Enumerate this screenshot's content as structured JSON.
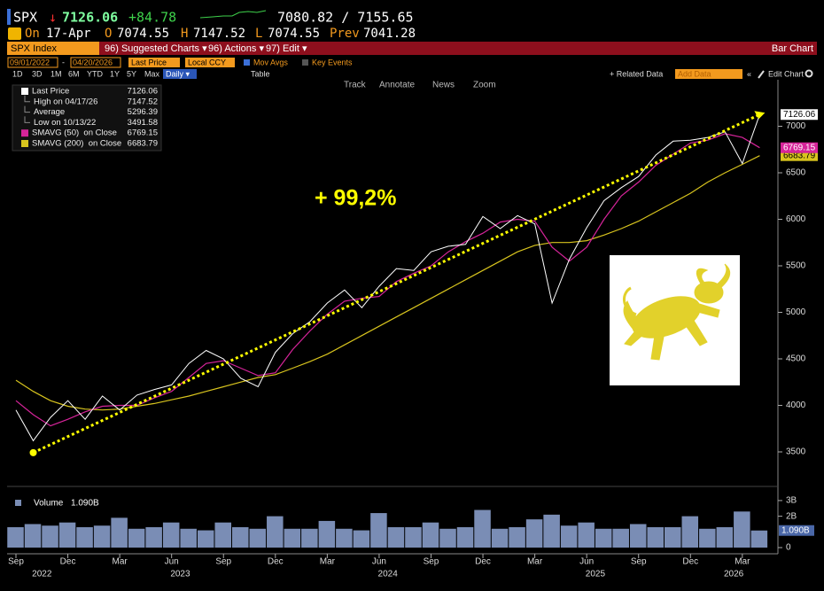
{
  "header": {
    "ticker": "SPX",
    "arrow": "↓",
    "last": "7126.06",
    "change": "+84.78",
    "bid_ask": "7080.82 / 7155.65",
    "quote_row": [
      "On",
      "17-Apr",
      "O",
      "7074.55",
      "H",
      "7147.52",
      "L",
      "7074.55",
      "Prev",
      "7041.28"
    ],
    "security": "SPX Index",
    "menus": [
      "96) Suggested Charts ▾",
      "96) Actions ▾",
      "97) Edit ▾"
    ],
    "view": "Bar Chart",
    "start_date": "09/01/2022",
    "date_sep": "-",
    "end_date": "04/20/2026",
    "field": "Last Price",
    "currency": "Local CCY",
    "options": [
      "Mov Avgs",
      "Key Events"
    ],
    "periods": [
      "1D",
      "3D",
      "1M",
      "6M",
      "YTD",
      "1Y",
      "5Y",
      "Max"
    ],
    "frequency": "Daily ▾",
    "table": "Table",
    "related": "+ Related Data",
    "add_data": "Add Data",
    "collapse": "«",
    "edit_chart": "Edit Chart",
    "chart_tools": [
      "Track",
      "Annotate",
      "News",
      "Zoom"
    ]
  },
  "chart_data": {
    "type": "line",
    "x": [
      "2022-09",
      "2022-10",
      "2022-11",
      "2022-12",
      "2023-01",
      "2023-02",
      "2023-03",
      "2023-04",
      "2023-05",
      "2023-06",
      "2023-07",
      "2023-08",
      "2023-09",
      "2023-10",
      "2023-11",
      "2023-12",
      "2024-01",
      "2024-02",
      "2024-03",
      "2024-04",
      "2024-05",
      "2024-06",
      "2024-07",
      "2024-08",
      "2024-09",
      "2024-10",
      "2024-11",
      "2024-12",
      "2025-01",
      "2025-02",
      "2025-03",
      "2025-04",
      "2025-05",
      "2025-06",
      "2025-07",
      "2025-08",
      "2025-09",
      "2025-10",
      "2025-11",
      "2025-12",
      "2026-01",
      "2026-02",
      "2026-03",
      "2026-04"
    ],
    "series": [
      {
        "name": "Last Price",
        "color": "#ffffff",
        "values": [
          3950,
          3620,
          3870,
          4050,
          3850,
          4100,
          3950,
          4110,
          4170,
          4220,
          4450,
          4590,
          4500,
          4290,
          4200,
          4570,
          4770,
          4900,
          5100,
          5240,
          5050,
          5280,
          5470,
          5450,
          5650,
          5710,
          5730,
          6030,
          5900,
          6040,
          5950,
          5100,
          5570,
          5910,
          6200,
          6340,
          6460,
          6690,
          6840,
          6850,
          6880,
          6940,
          6600,
          7126.06
        ]
      },
      {
        "name": "SMAVG (50)  on Close",
        "color": "#d6249a",
        "values": [
          4050,
          3900,
          3780,
          3850,
          3930,
          3990,
          4000,
          4000,
          4080,
          4150,
          4300,
          4450,
          4480,
          4400,
          4320,
          4350,
          4600,
          4800,
          4980,
          5120,
          5150,
          5170,
          5330,
          5420,
          5500,
          5650,
          5760,
          5850,
          5970,
          6000,
          5980,
          5700,
          5550,
          5700,
          6000,
          6250,
          6400,
          6580,
          6700,
          6820,
          6850,
          6920,
          6880,
          6769.15
        ]
      },
      {
        "name": "SMAVG (200)  on Close",
        "color": "#d8c41e",
        "values": [
          4270,
          4150,
          4050,
          3990,
          3960,
          3950,
          3960,
          3990,
          4020,
          4060,
          4100,
          4150,
          4200,
          4250,
          4300,
          4330,
          4400,
          4470,
          4550,
          4650,
          4750,
          4850,
          4950,
          5050,
          5150,
          5250,
          5350,
          5450,
          5550,
          5650,
          5720,
          5750,
          5750,
          5770,
          5830,
          5900,
          5980,
          6080,
          6180,
          6280,
          6400,
          6500,
          6590,
          6683.79
        ]
      }
    ],
    "stats": [
      {
        "label": "High on 04/17/26",
        "value": 7147.52
      },
      {
        "label": "Average",
        "value": 5296.39
      },
      {
        "label": "Low on 10/13/22",
        "value": 3491.58
      }
    ],
    "ylim": [
      3138,
      7500
    ],
    "yticks": [
      3500,
      4000,
      4500,
      5000,
      5500,
      6000,
      6500,
      7000
    ],
    "grid": false,
    "xticks": [
      {
        "value": "2022-09",
        "label": "Sep"
      },
      {
        "value": "2022-12",
        "label": "Dec"
      },
      {
        "value": "2023-03",
        "label": "Mar"
      },
      {
        "value": "2023-06",
        "label": "Jun"
      },
      {
        "value": "2023-09",
        "label": "Sep"
      },
      {
        "value": "2023-12",
        "label": "Dec"
      },
      {
        "value": "2024-03",
        "label": "Mar"
      },
      {
        "value": "2024-06",
        "label": "Jun"
      },
      {
        "value": "2024-09",
        "label": "Sep"
      },
      {
        "value": "2024-12",
        "label": "Dec"
      },
      {
        "value": "2025-03",
        "label": "Mar"
      },
      {
        "value": "2025-06",
        "label": "Jun"
      },
      {
        "value": "2025-09",
        "label": "Sep"
      },
      {
        "value": "2025-12",
        "label": "Dec"
      },
      {
        "value": "2026-03",
        "label": "Mar"
      }
    ],
    "years": [
      2022,
      2023,
      2024,
      2025,
      2026
    ],
    "annotation": {
      "text": "+ 99,2%",
      "color": "#ffff00"
    },
    "volume": {
      "name": "Volume",
      "color": "#7a8db5",
      "values": [
        1.3,
        1.5,
        1.4,
        1.6,
        1.3,
        1.4,
        1.9,
        1.2,
        1.3,
        1.6,
        1.2,
        1.1,
        1.6,
        1.3,
        1.2,
        2.0,
        1.2,
        1.2,
        1.7,
        1.2,
        1.1,
        2.2,
        1.3,
        1.3,
        1.6,
        1.2,
        1.3,
        2.4,
        1.2,
        1.3,
        1.8,
        2.1,
        1.4,
        1.6,
        1.2,
        1.2,
        1.5,
        1.3,
        1.3,
        2.0,
        1.2,
        1.3,
        2.3,
        1.09
      ],
      "value_labels": [
        null,
        null,
        null,
        null,
        null,
        null,
        null,
        null,
        null,
        null,
        null,
        null,
        null,
        null,
        null,
        null,
        null,
        null,
        null,
        null,
        null,
        null,
        null,
        null,
        null,
        null,
        null,
        null,
        null,
        null,
        null,
        null,
        null,
        null,
        null,
        null,
        null,
        null,
        null,
        null,
        null,
        null,
        null,
        "1.090B"
      ],
      "ylim": [
        0,
        3.73
      ],
      "yticks": [
        0,
        {
          "value": 2,
          "label": "2B"
        },
        {
          "value": 3,
          "label": "3B"
        }
      ]
    }
  }
}
